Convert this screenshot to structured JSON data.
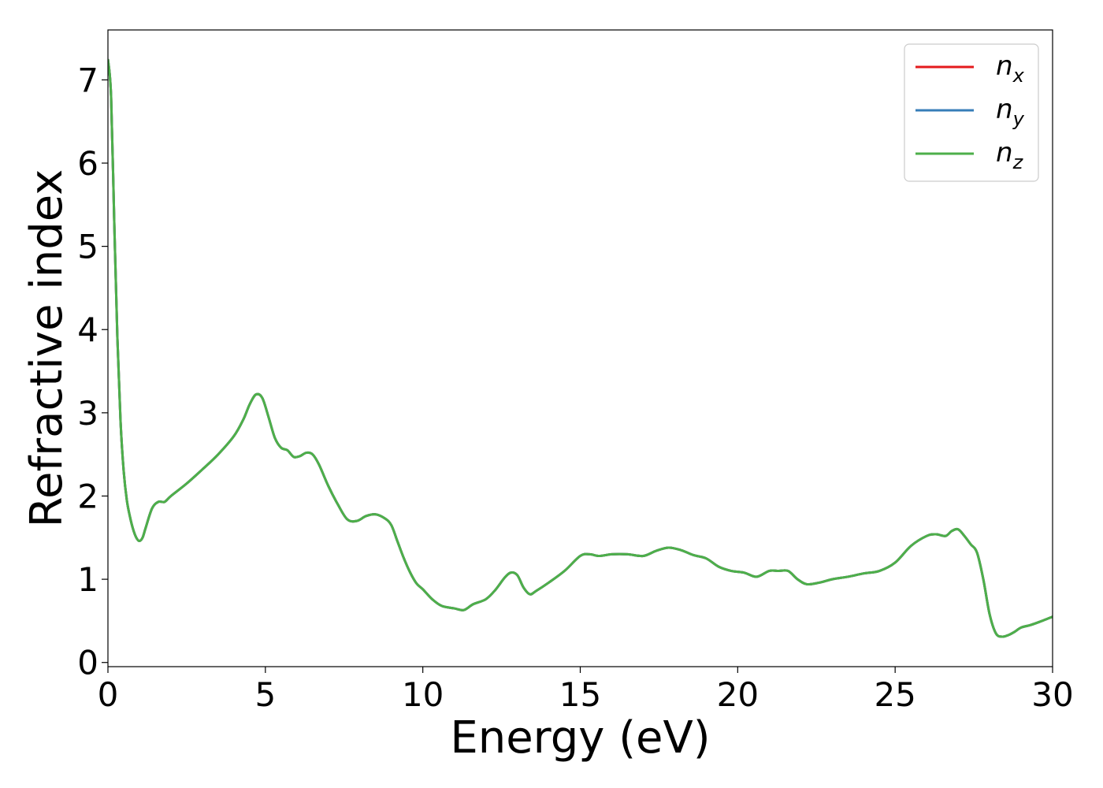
{
  "chart_data": {
    "type": "line",
    "xlabel": "Energy (eV)",
    "ylabel": "Refractive index",
    "xlim": [
      0,
      30
    ],
    "ylim": [
      -0.05,
      7.6
    ],
    "x_ticks": [
      0,
      5,
      10,
      15,
      20,
      25,
      30
    ],
    "x_tick_labels": [
      "0",
      "5",
      "10",
      "15",
      "20",
      "25",
      "30"
    ],
    "y_ticks": [
      0,
      1,
      2,
      3,
      4,
      5,
      6,
      7
    ],
    "y_tick_labels": [
      "0",
      "1",
      "2",
      "3",
      "4",
      "5",
      "6",
      "7"
    ],
    "grid": false,
    "legend_position": "top-right",
    "x": [
      0,
      0.1,
      0.2,
      0.3,
      0.4,
      0.5,
      0.6,
      0.7,
      0.8,
      0.9,
      1.0,
      1.1,
      1.2,
      1.4,
      1.6,
      1.8,
      2.0,
      2.5,
      3.0,
      3.5,
      4.0,
      4.3,
      4.5,
      4.7,
      4.9,
      5.1,
      5.3,
      5.5,
      5.7,
      5.9,
      6.1,
      6.3,
      6.5,
      6.7,
      7.0,
      7.3,
      7.6,
      7.9,
      8.2,
      8.5,
      8.8,
      9.0,
      9.2,
      9.4,
      9.6,
      9.8,
      10.0,
      10.3,
      10.6,
      11.0,
      11.3,
      11.6,
      12.0,
      12.3,
      12.6,
      12.8,
      13.0,
      13.2,
      13.4,
      13.6,
      14.0,
      14.5,
      15.0,
      15.3,
      15.6,
      16.0,
      16.5,
      17.0,
      17.4,
      17.8,
      18.2,
      18.6,
      19.0,
      19.4,
      19.8,
      20.2,
      20.6,
      21.0,
      21.3,
      21.6,
      21.9,
      22.2,
      22.6,
      23.0,
      23.5,
      24.0,
      24.5,
      25.0,
      25.5,
      26.0,
      26.3,
      26.6,
      26.8,
      27.0,
      27.2,
      27.4,
      27.6,
      27.8,
      28.0,
      28.2,
      28.4,
      28.6,
      28.8,
      29.0,
      29.3,
      29.6,
      30.0
    ],
    "series": [
      {
        "name": "n_x",
        "label_base": "n",
        "label_sub": "x",
        "color": "#e41a1c",
        "values": [
          7.25,
          6.8,
          5.3,
          3.9,
          2.9,
          2.3,
          1.95,
          1.75,
          1.6,
          1.5,
          1.46,
          1.5,
          1.62,
          1.85,
          1.93,
          1.93,
          2.0,
          2.15,
          2.32,
          2.5,
          2.72,
          2.92,
          3.1,
          3.22,
          3.18,
          2.95,
          2.7,
          2.58,
          2.55,
          2.47,
          2.48,
          2.52,
          2.5,
          2.38,
          2.12,
          1.9,
          1.72,
          1.7,
          1.76,
          1.78,
          1.73,
          1.65,
          1.45,
          1.25,
          1.08,
          0.95,
          0.88,
          0.76,
          0.68,
          0.65,
          0.63,
          0.7,
          0.76,
          0.87,
          1.02,
          1.08,
          1.05,
          0.9,
          0.82,
          0.86,
          0.96,
          1.1,
          1.28,
          1.3,
          1.28,
          1.3,
          1.3,
          1.28,
          1.34,
          1.38,
          1.35,
          1.29,
          1.25,
          1.15,
          1.1,
          1.08,
          1.03,
          1.1,
          1.1,
          1.1,
          1.0,
          0.94,
          0.96,
          1.0,
          1.03,
          1.07,
          1.1,
          1.2,
          1.4,
          1.52,
          1.54,
          1.52,
          1.58,
          1.6,
          1.52,
          1.42,
          1.32,
          1.0,
          0.58,
          0.35,
          0.31,
          0.33,
          0.37,
          0.42,
          0.45,
          0.49,
          0.55
        ]
      },
      {
        "name": "n_y",
        "label_base": "n",
        "label_sub": "y",
        "color": "#377eb8",
        "values": [
          7.25,
          6.8,
          5.3,
          3.9,
          2.9,
          2.3,
          1.95,
          1.75,
          1.6,
          1.5,
          1.46,
          1.5,
          1.62,
          1.85,
          1.93,
          1.93,
          2.0,
          2.15,
          2.32,
          2.5,
          2.72,
          2.92,
          3.1,
          3.22,
          3.18,
          2.95,
          2.7,
          2.58,
          2.55,
          2.47,
          2.48,
          2.52,
          2.5,
          2.38,
          2.12,
          1.9,
          1.72,
          1.7,
          1.76,
          1.78,
          1.73,
          1.65,
          1.45,
          1.25,
          1.08,
          0.95,
          0.88,
          0.76,
          0.68,
          0.65,
          0.63,
          0.7,
          0.76,
          0.87,
          1.02,
          1.08,
          1.05,
          0.9,
          0.82,
          0.86,
          0.96,
          1.1,
          1.28,
          1.3,
          1.28,
          1.3,
          1.3,
          1.28,
          1.34,
          1.38,
          1.35,
          1.29,
          1.25,
          1.15,
          1.1,
          1.08,
          1.03,
          1.1,
          1.1,
          1.1,
          1.0,
          0.94,
          0.96,
          1.0,
          1.03,
          1.07,
          1.1,
          1.2,
          1.4,
          1.52,
          1.54,
          1.52,
          1.58,
          1.6,
          1.52,
          1.42,
          1.32,
          1.0,
          0.58,
          0.35,
          0.31,
          0.33,
          0.37,
          0.42,
          0.45,
          0.49,
          0.55
        ]
      },
      {
        "name": "n_z",
        "label_base": "n",
        "label_sub": "z",
        "color": "#4daf4a",
        "values": [
          7.25,
          6.8,
          5.3,
          3.9,
          2.9,
          2.3,
          1.95,
          1.75,
          1.6,
          1.5,
          1.46,
          1.5,
          1.62,
          1.85,
          1.93,
          1.93,
          2.0,
          2.15,
          2.32,
          2.5,
          2.72,
          2.92,
          3.1,
          3.22,
          3.18,
          2.95,
          2.7,
          2.58,
          2.55,
          2.47,
          2.48,
          2.52,
          2.5,
          2.38,
          2.12,
          1.9,
          1.72,
          1.7,
          1.76,
          1.78,
          1.73,
          1.65,
          1.45,
          1.25,
          1.08,
          0.95,
          0.88,
          0.76,
          0.68,
          0.65,
          0.63,
          0.7,
          0.76,
          0.87,
          1.02,
          1.08,
          1.05,
          0.9,
          0.82,
          0.86,
          0.96,
          1.1,
          1.28,
          1.3,
          1.28,
          1.3,
          1.3,
          1.28,
          1.34,
          1.38,
          1.35,
          1.29,
          1.25,
          1.15,
          1.1,
          1.08,
          1.03,
          1.1,
          1.1,
          1.1,
          1.0,
          0.94,
          0.96,
          1.0,
          1.03,
          1.07,
          1.1,
          1.2,
          1.4,
          1.52,
          1.54,
          1.52,
          1.58,
          1.6,
          1.52,
          1.42,
          1.32,
          1.0,
          0.58,
          0.35,
          0.31,
          0.33,
          0.37,
          0.42,
          0.45,
          0.49,
          0.55
        ]
      }
    ]
  }
}
